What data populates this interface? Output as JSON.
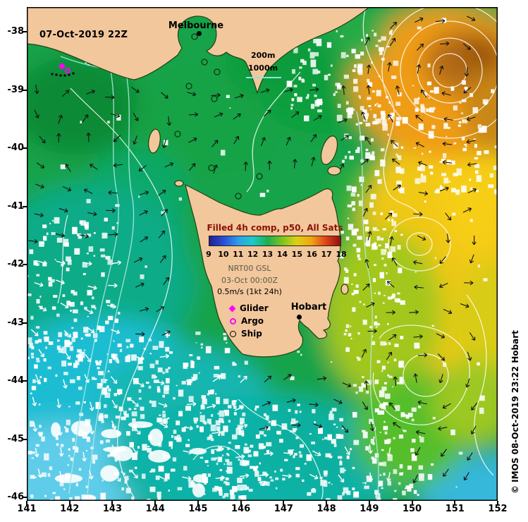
{
  "map": {
    "date_label": "07-Oct-2019 22Z",
    "credit": "© IMOS 08-Oct-2019 23:22 Hobart",
    "cities": {
      "melbourne": "Melbourne",
      "hobart": "Hobart"
    },
    "depth_legend": {
      "l200": "200m",
      "l1000": "1000m",
      "line_color": "#8ce4da"
    },
    "colorbar": {
      "title": "Filled 4h comp, p50, All Sats",
      "title_color": "#8b1206",
      "ticks": [
        "9",
        "10",
        "11",
        "12",
        "13",
        "14",
        "15",
        "16",
        "17",
        "18"
      ],
      "palette": [
        "#241f8f",
        "#2b4fd8",
        "#2f9fe8",
        "#1fc9c9",
        "#1fae4d",
        "#7cc41f",
        "#ddd013",
        "#f2a313",
        "#e0421c",
        "#8f1109"
      ]
    },
    "info": {
      "product": "NRT00 GSL",
      "time": "03-Oct 00:00Z",
      "scale": "0.5m/s (1kt 24h)"
    },
    "obs_legend": [
      {
        "label": "Glider",
        "marker": "diamond",
        "color": "#ff00ff"
      },
      {
        "label": "Argo",
        "marker": "circle",
        "color": "#ff00ff"
      },
      {
        "label": "Ship",
        "marker": "circle",
        "color": "#000000"
      }
    ],
    "axes": {
      "x_ticks": [
        "141",
        "142",
        "143",
        "144",
        "145",
        "146",
        "147",
        "148",
        "149",
        "150",
        "151",
        "152"
      ],
      "y_ticks": [
        "-38",
        "-39",
        "-40",
        "-41",
        "-42",
        "-43",
        "-44",
        "-45",
        "-46"
      ]
    }
  }
}
